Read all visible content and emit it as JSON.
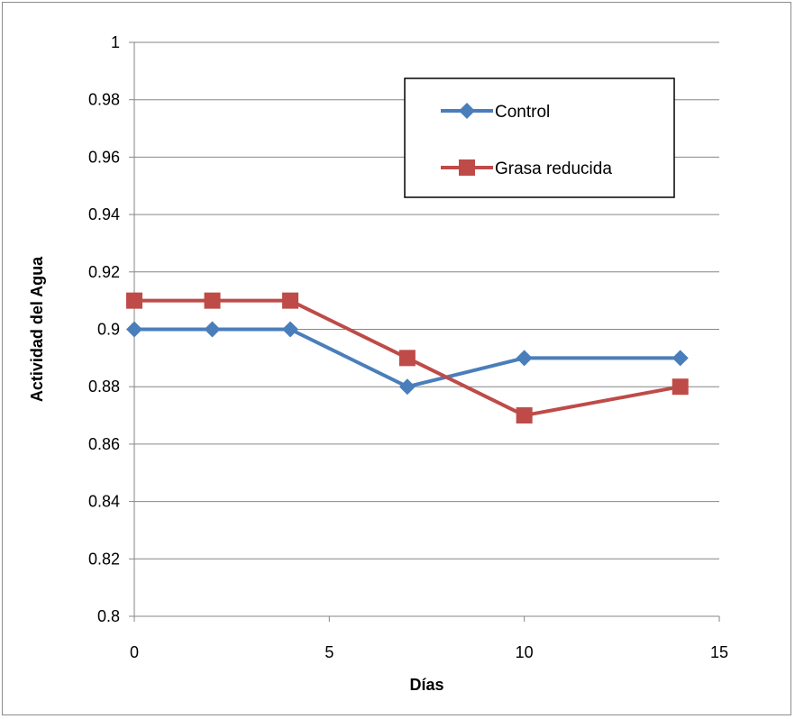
{
  "chart_data": {
    "type": "line",
    "title": "",
    "xlabel": "Días",
    "ylabel": "Actividad del Agua",
    "xlim": [
      0,
      15
    ],
    "ylim": [
      0.8,
      1
    ],
    "xticks": [
      "0",
      "5",
      "10",
      "15"
    ],
    "yticks": [
      "0.8",
      "0.82",
      "0.84",
      "0.86",
      "0.88",
      "0.9",
      "0.92",
      "0.94",
      "0.96",
      "0.98",
      "1"
    ],
    "grid": true,
    "legend_position": "top-right",
    "series": [
      {
        "name": "Control",
        "color": "#4a7ebb",
        "marker": "diamond",
        "x": [
          0,
          2,
          4,
          7,
          10,
          14
        ],
        "y": [
          0.9,
          0.9,
          0.9,
          0.88,
          0.89,
          0.89
        ]
      },
      {
        "name": "Grasa reducida",
        "color": "#be4b48",
        "marker": "square",
        "x": [
          0,
          2,
          4,
          7,
          10,
          14
        ],
        "y": [
          0.91,
          0.91,
          0.91,
          0.89,
          0.87,
          0.88
        ]
      }
    ]
  }
}
